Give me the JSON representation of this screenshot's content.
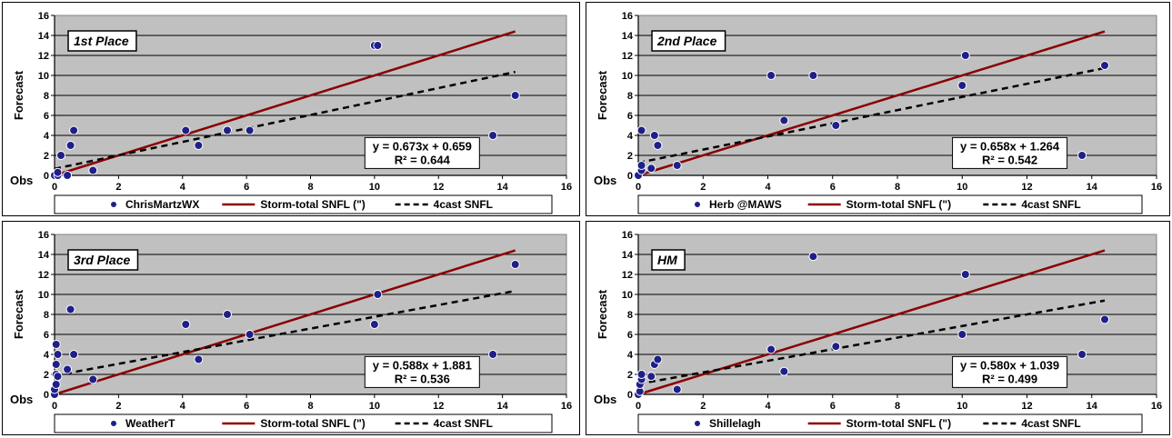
{
  "colors": {
    "plot_bg": "#c0c0c0",
    "point": "#1f1f8a",
    "regression": "#8b0000",
    "fit": "#000000"
  },
  "chart_data": [
    {
      "type": "scatter",
      "place": "1st Place",
      "xlabel": "Obs",
      "ylabel": "Forecast",
      "xlim": [
        0,
        16
      ],
      "ylim": [
        0,
        16
      ],
      "xticks": [
        "0",
        "2",
        "4",
        "6",
        "8",
        "10",
        "12",
        "14",
        "16"
      ],
      "yticks": [
        "0",
        "2",
        "4",
        "6",
        "8",
        "10",
        "12",
        "14",
        "16"
      ],
      "grid": true,
      "legend": [
        "ChrisMartzWX",
        "Storm-total SNFL (\")",
        "4cast SNFL"
      ],
      "equation": "y = 0.673x + 0.659",
      "r2": "R² = 0.644",
      "points": [
        [
          0,
          0
        ],
        [
          0.1,
          0
        ],
        [
          0.1,
          0.3
        ],
        [
          0.2,
          2
        ],
        [
          0.4,
          0
        ],
        [
          0.5,
          3
        ],
        [
          0.6,
          4.5
        ],
        [
          1.2,
          0.5
        ],
        [
          4.1,
          4.5
        ],
        [
          4.5,
          3
        ],
        [
          5.4,
          4.5
        ],
        [
          6.1,
          4.5
        ],
        [
          10,
          13
        ],
        [
          10.1,
          13
        ],
        [
          13.7,
          4
        ],
        [
          14.4,
          8
        ]
      ],
      "regression_line": [
        [
          0,
          0
        ],
        [
          14.4,
          14.4
        ]
      ],
      "fit_line": [
        [
          0,
          0.659
        ],
        [
          14.4,
          10.35
        ]
      ]
    },
    {
      "type": "scatter",
      "place": "2nd Place",
      "xlabel": "Obs",
      "ylabel": "Forecast",
      "xlim": [
        0,
        16
      ],
      "ylim": [
        0,
        16
      ],
      "xticks": [
        "0",
        "2",
        "4",
        "6",
        "8",
        "10",
        "12",
        "14",
        "16"
      ],
      "yticks": [
        "0",
        "2",
        "4",
        "6",
        "8",
        "10",
        "12",
        "14",
        "16"
      ],
      "grid": true,
      "legend": [
        "Herb @MAWS",
        "Storm-total SNFL (\")",
        "4cast SNFL"
      ],
      "equation": "y = 0.658x + 1.264",
      "r2": "R² = 0.542",
      "points": [
        [
          0,
          0
        ],
        [
          0.1,
          0.5
        ],
        [
          0.1,
          1
        ],
        [
          0.1,
          4.5
        ],
        [
          0.4,
          0.7
        ],
        [
          0.5,
          4
        ],
        [
          0.6,
          3
        ],
        [
          1.2,
          1
        ],
        [
          4.1,
          10
        ],
        [
          4.5,
          5.5
        ],
        [
          5.4,
          10
        ],
        [
          6.1,
          5
        ],
        [
          10,
          9
        ],
        [
          10.1,
          12
        ],
        [
          13.7,
          2
        ],
        [
          14.4,
          11
        ]
      ],
      "regression_line": [
        [
          0,
          0
        ],
        [
          14.4,
          14.4
        ]
      ],
      "fit_line": [
        [
          0,
          1.264
        ],
        [
          14.4,
          10.74
        ]
      ]
    },
    {
      "type": "scatter",
      "place": "3rd Place",
      "xlabel": "Obs",
      "ylabel": "Forecast",
      "xlim": [
        0,
        16
      ],
      "ylim": [
        0,
        16
      ],
      "xticks": [
        "0",
        "2",
        "4",
        "6",
        "8",
        "10",
        "12",
        "14",
        "16"
      ],
      "yticks": [
        "0",
        "2",
        "4",
        "6",
        "8",
        "10",
        "12",
        "14",
        "16"
      ],
      "grid": true,
      "legend": [
        "WeatherT",
        "Storm-total SNFL (\")",
        "4cast SNFL"
      ],
      "equation": "y = 0.588x + 1.881",
      "r2": "R² = 0.536",
      "points": [
        [
          0,
          0
        ],
        [
          0,
          0.5
        ],
        [
          0.05,
          1
        ],
        [
          0.05,
          2
        ],
        [
          0.05,
          3
        ],
        [
          0.05,
          5
        ],
        [
          0.1,
          4
        ],
        [
          0.1,
          1.8
        ],
        [
          0.4,
          2.5
        ],
        [
          0.5,
          8.5
        ],
        [
          0.6,
          4
        ],
        [
          1.2,
          1.5
        ],
        [
          4.1,
          7
        ],
        [
          4.5,
          3.5
        ],
        [
          5.4,
          8
        ],
        [
          6.1,
          6
        ],
        [
          10,
          7
        ],
        [
          10.1,
          10
        ],
        [
          13.7,
          4
        ],
        [
          14.4,
          13
        ]
      ],
      "regression_line": [
        [
          0,
          0
        ],
        [
          14.4,
          14.4
        ]
      ],
      "fit_line": [
        [
          0,
          1.881
        ],
        [
          14.4,
          10.35
        ]
      ]
    },
    {
      "type": "scatter",
      "place": "HM",
      "xlabel": "Obs",
      "ylabel": "Forecast",
      "xlim": [
        0,
        16
      ],
      "ylim": [
        0,
        16
      ],
      "xticks": [
        "0",
        "2",
        "4",
        "6",
        "8",
        "10",
        "12",
        "14",
        "16"
      ],
      "yticks": [
        "0",
        "2",
        "4",
        "6",
        "8",
        "10",
        "12",
        "14",
        "16"
      ],
      "grid": true,
      "legend": [
        "Shillelagh",
        "Storm-total SNFL (\")",
        "4cast SNFL"
      ],
      "equation": "y = 0.580x + 1.039",
      "r2": "R² = 0.499",
      "points": [
        [
          0,
          0
        ],
        [
          0.05,
          0.3
        ],
        [
          0.05,
          1
        ],
        [
          0.1,
          1.5
        ],
        [
          0.1,
          2
        ],
        [
          0.4,
          1.8
        ],
        [
          0.5,
          3
        ],
        [
          0.6,
          3.5
        ],
        [
          1.2,
          0.5
        ],
        [
          4.1,
          4.5
        ],
        [
          4.5,
          2.3
        ],
        [
          5.4,
          13.8
        ],
        [
          6.1,
          4.8
        ],
        [
          10,
          6
        ],
        [
          10.1,
          12
        ],
        [
          13.7,
          4
        ],
        [
          14.4,
          7.5
        ]
      ],
      "regression_line": [
        [
          0,
          0
        ],
        [
          14.4,
          14.4
        ]
      ],
      "fit_line": [
        [
          0,
          1.039
        ],
        [
          14.4,
          9.39
        ]
      ]
    }
  ]
}
